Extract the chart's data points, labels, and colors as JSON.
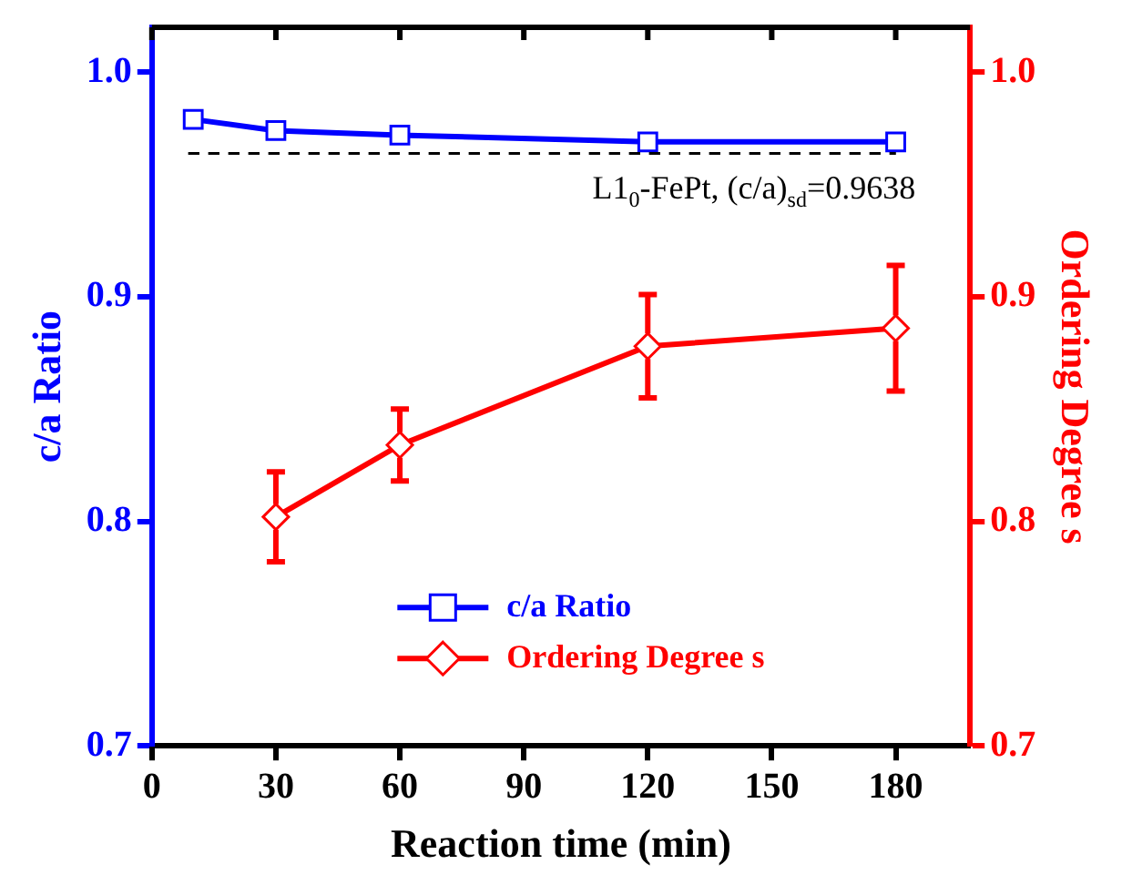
{
  "chart_data": {
    "type": "line",
    "xlabel": "Reaction time (min)",
    "ylabel": "c/a Ratio",
    "y2label": "Ordering Degree s",
    "xlim": [
      0,
      198
    ],
    "xticks": [
      0,
      30,
      60,
      90,
      120,
      150,
      180
    ],
    "ylim": [
      0.7,
      1.02
    ],
    "yticks": [
      0.7,
      0.8,
      0.9,
      {
        "value": 1,
        "label": "1.0"
      }
    ],
    "y2lim": [
      0.7,
      1.02
    ],
    "y2ticks": [
      0.7,
      0.8,
      0.9,
      {
        "value": 1,
        "label": "1.0"
      }
    ],
    "series": [
      {
        "name": "c/a Ratio",
        "color": "#0000ff",
        "axis": "y",
        "marker": "square",
        "x": [
          10,
          30,
          60,
          120,
          180
        ],
        "values": [
          0.979,
          0.974,
          0.972,
          0.969,
          0.969
        ]
      },
      {
        "name": "Ordering Degree s",
        "color": "#ff0000",
        "axis": "y2",
        "marker": "diamond",
        "x": [
          30,
          60,
          120,
          180
        ],
        "values": [
          0.802,
          0.834,
          0.878,
          0.886
        ],
        "errors": [
          0.02,
          0.016,
          0.023,
          0.028
        ]
      }
    ],
    "ref_lines": [
      {
        "axis": "y",
        "value": 0.9638,
        "label": "L1$_{0}$-FePt, (c/a)$_{sd}$=0.9638",
        "color": "#000000",
        "line_style": "dashed"
      }
    ],
    "legend": "bottom",
    "grid": false,
    "line_style": "solid"
  }
}
